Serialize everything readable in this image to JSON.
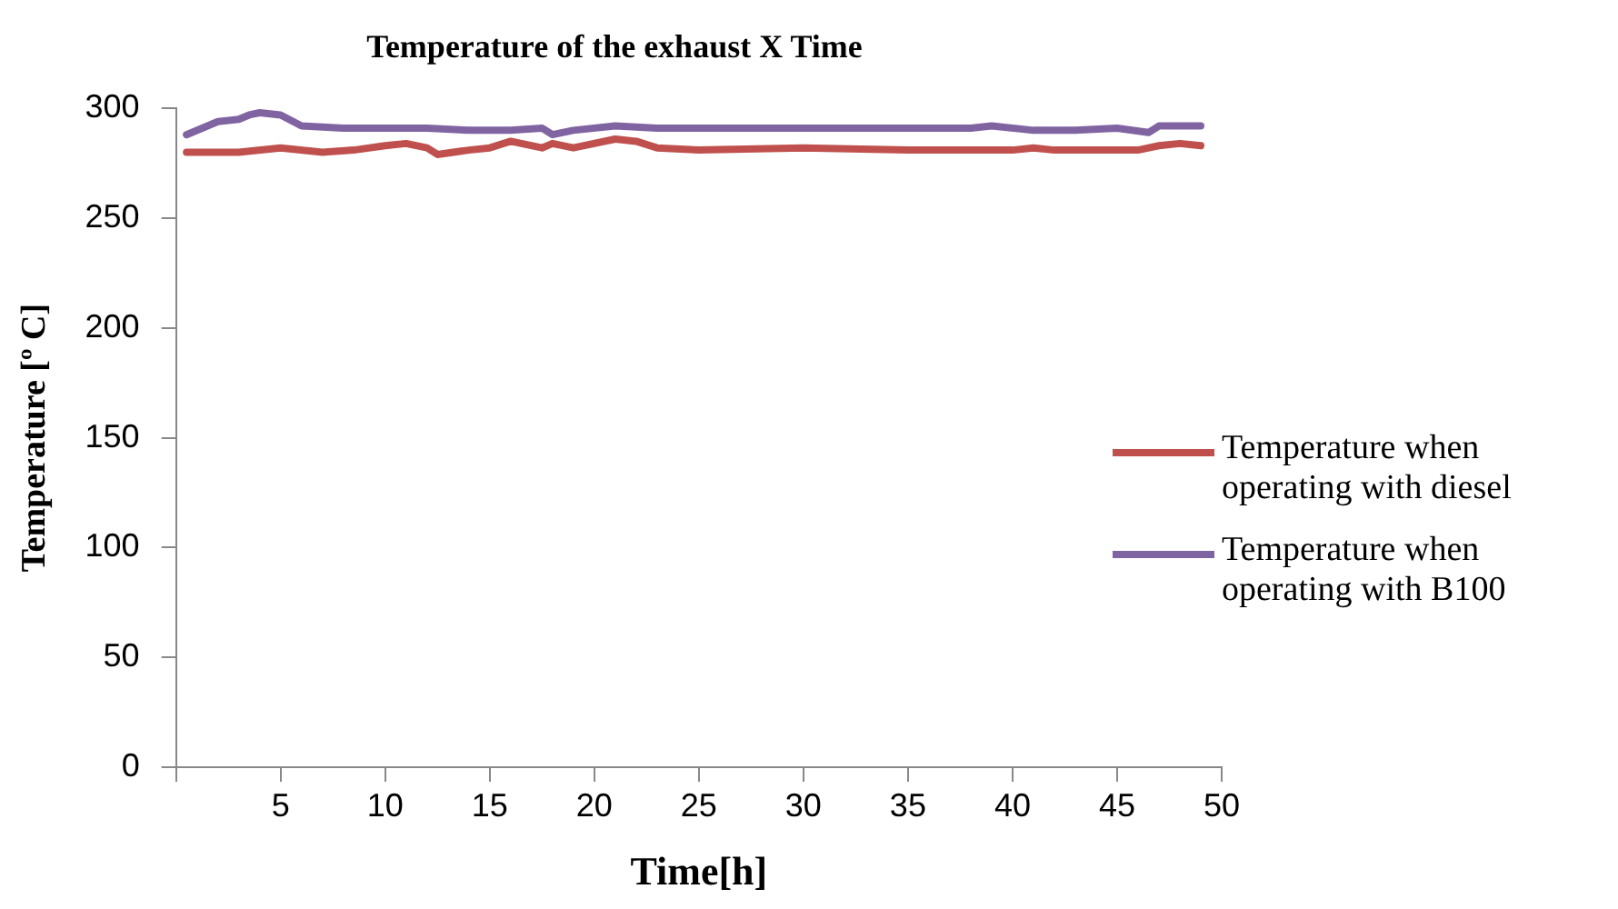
{
  "chart_data": {
    "type": "line",
    "title": "Temperature of the exhaust X Time",
    "xlabel": "Time[h]",
    "ylabel": "Temperature [º C]",
    "xlim": [
      0,
      50
    ],
    "xticks": [
      {
        "value": 0,
        "label": null
      },
      5,
      10,
      15,
      20,
      25,
      30,
      35,
      40,
      45,
      50
    ],
    "ylim": [
      0,
      300
    ],
    "yticks": [
      0,
      50,
      100,
      150,
      200,
      250,
      300
    ],
    "grid": false,
    "legend": "right",
    "marker": "none",
    "line_style": "solid",
    "series": [
      {
        "name": "Temperature when operating with diesel",
        "color": "#c0504d",
        "x": [
          0.5,
          3,
          5,
          7,
          8.5,
          10,
          11,
          12,
          12.5,
          14,
          15,
          16,
          17.5,
          18,
          19,
          21,
          22,
          23,
          25,
          30,
          35,
          40,
          41,
          42,
          46,
          47,
          48,
          49
        ],
        "values": [
          280,
          280,
          282,
          280,
          281,
          283,
          284,
          282,
          279,
          281,
          282,
          285,
          282,
          284,
          282,
          286,
          285,
          282,
          281,
          282,
          281,
          281,
          282,
          281,
          281,
          283,
          284,
          283
        ]
      },
      {
        "name": "Temperature when operating with B100",
        "color": "#8064a2",
        "x": [
          0.5,
          2,
          3,
          3.5,
          4,
          5,
          6,
          8,
          12,
          14,
          16,
          17.5,
          18,
          19,
          21,
          23,
          30,
          38,
          39,
          41,
          43,
          45,
          46.5,
          47,
          49
        ],
        "values": [
          288,
          294,
          295,
          297,
          298,
          297,
          292,
          291,
          291,
          290,
          290,
          291,
          288,
          290,
          292,
          291,
          291,
          291,
          292,
          290,
          290,
          291,
          289,
          292,
          292
        ]
      }
    ]
  }
}
